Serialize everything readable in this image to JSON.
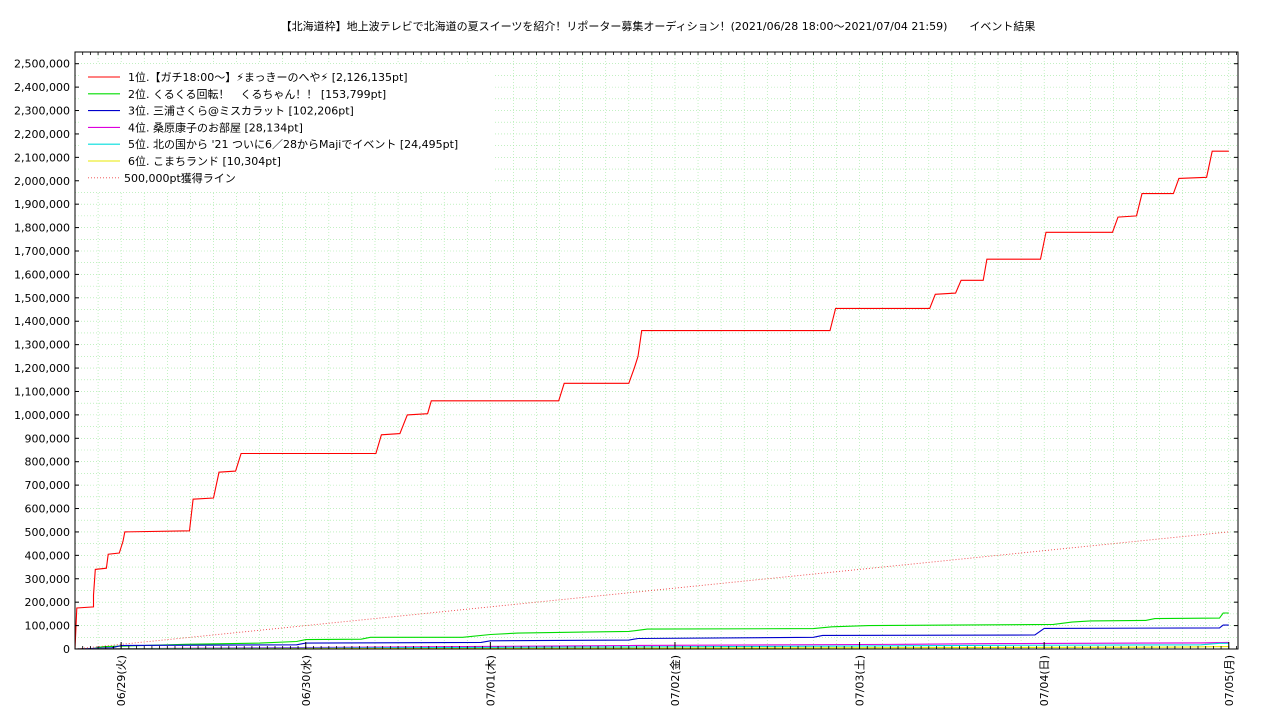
{
  "chart_data": {
    "type": "line",
    "title": "【北海道枠】地上波テレビで北海道の夏スイーツを紹介！リポーター募集オーディション！(2021/06/28 18:00～2021/07/04 21:59)　　イベント結果",
    "xlabel": "",
    "ylabel": "",
    "x_unit": "days since 2021/06/28 18:00",
    "xlim": [
      0,
      6.3
    ],
    "ylim": [
      0,
      2550000
    ],
    "y_ticks": [
      0,
      100000,
      200000,
      300000,
      400000,
      500000,
      600000,
      700000,
      800000,
      900000,
      1000000,
      1100000,
      1200000,
      1300000,
      1400000,
      1500000,
      1600000,
      1700000,
      1800000,
      1900000,
      2000000,
      2100000,
      2200000,
      2300000,
      2400000,
      2500000
    ],
    "y_tick_labels": [
      "0",
      "100,000",
      "200,000",
      "300,000",
      "400,000",
      "500,000",
      "600,000",
      "700,000",
      "800,000",
      "900,000",
      "1,000,000",
      "1,100,000",
      "1,200,000",
      "1,300,000",
      "1,400,000",
      "1,500,000",
      "1,600,000",
      "1,700,000",
      "1,800,000",
      "1,900,000",
      "2,000,000",
      "2,100,000",
      "2,200,000",
      "2,300,000",
      "2,400,000",
      "2,500,000"
    ],
    "x_ticks": [
      0.25,
      1.25,
      2.25,
      3.25,
      4.25,
      5.25,
      6.25
    ],
    "x_tick_labels": [
      "06/29(火)",
      "06/30(水)",
      "07/01(木)",
      "07/02(金)",
      "07/03(土)",
      "07/04(日)",
      "07/05(月)"
    ],
    "grid": true,
    "legend_position": "top-left",
    "series": [
      {
        "name": "1位.【ガチ18:00〜】⚡まっきーのへや⚡ [2,126,135pt]",
        "color": "#ff0000",
        "style": "solid",
        "points": [
          [
            0,
            0
          ],
          [
            0.01,
            175000
          ],
          [
            0.1,
            180000
          ],
          [
            0.1,
            230000
          ],
          [
            0.11,
            340000
          ],
          [
            0.17,
            345000
          ],
          [
            0.18,
            405000
          ],
          [
            0.24,
            410000
          ],
          [
            0.26,
            460000
          ],
          [
            0.27,
            500000
          ],
          [
            0.62,
            505000
          ],
          [
            0.64,
            640000
          ],
          [
            0.75,
            645000
          ],
          [
            0.78,
            755000
          ],
          [
            0.87,
            760000
          ],
          [
            0.9,
            835000
          ],
          [
            1.63,
            835000
          ],
          [
            1.66,
            915000
          ],
          [
            1.76,
            920000
          ],
          [
            1.8,
            1000000
          ],
          [
            1.91,
            1005000
          ],
          [
            1.93,
            1060000
          ],
          [
            2.62,
            1060000
          ],
          [
            2.65,
            1135000
          ],
          [
            3.0,
            1135000
          ],
          [
            3.03,
            1200000
          ],
          [
            3.05,
            1250000
          ],
          [
            3.07,
            1360000
          ],
          [
            4.09,
            1360000
          ],
          [
            4.12,
            1455000
          ],
          [
            4.63,
            1455000
          ],
          [
            4.66,
            1515000
          ],
          [
            4.77,
            1520000
          ],
          [
            4.8,
            1575000
          ],
          [
            4.92,
            1575000
          ],
          [
            4.94,
            1665000
          ],
          [
            5.23,
            1665000
          ],
          [
            5.26,
            1780000
          ],
          [
            5.62,
            1780000
          ],
          [
            5.65,
            1845000
          ],
          [
            5.75,
            1850000
          ],
          [
            5.78,
            1945000
          ],
          [
            5.95,
            1945000
          ],
          [
            5.98,
            2010000
          ],
          [
            6.13,
            2015000
          ],
          [
            6.16,
            2126135
          ],
          [
            6.25,
            2126135
          ]
        ]
      },
      {
        "name": "2位. くるくる回転！　くるちゃん！！ [153,799pt]",
        "color": "#00dd00",
        "style": "solid",
        "points": [
          [
            0,
            0
          ],
          [
            0.1,
            2000
          ],
          [
            0.15,
            10000
          ],
          [
            0.6,
            20000
          ],
          [
            1.0,
            25000
          ],
          [
            1.2,
            32000
          ],
          [
            1.25,
            40000
          ],
          [
            1.55,
            42000
          ],
          [
            1.6,
            50000
          ],
          [
            2.1,
            50000
          ],
          [
            2.25,
            62000
          ],
          [
            2.4,
            68000
          ],
          [
            2.75,
            72000
          ],
          [
            3.0,
            75000
          ],
          [
            3.05,
            80000
          ],
          [
            3.1,
            85000
          ],
          [
            4.0,
            87000
          ],
          [
            4.1,
            95000
          ],
          [
            4.3,
            100000
          ],
          [
            4.75,
            102000
          ],
          [
            5.3,
            105000
          ],
          [
            5.4,
            115000
          ],
          [
            5.5,
            120000
          ],
          [
            5.8,
            122000
          ],
          [
            5.85,
            130000
          ],
          [
            6.2,
            132000
          ],
          [
            6.22,
            153799
          ],
          [
            6.25,
            153799
          ]
        ]
      },
      {
        "name": "3位. 三浦さくら@ミスカラット [102,206pt]",
        "color": "#0000cc",
        "style": "solid",
        "points": [
          [
            0,
            0
          ],
          [
            0.2,
            5000
          ],
          [
            0.25,
            15000
          ],
          [
            1.2,
            18000
          ],
          [
            1.25,
            25000
          ],
          [
            2.2,
            28000
          ],
          [
            2.25,
            35000
          ],
          [
            3.0,
            38000
          ],
          [
            3.05,
            45000
          ],
          [
            4.0,
            50000
          ],
          [
            4.05,
            58000
          ],
          [
            5.2,
            60000
          ],
          [
            5.25,
            88000
          ],
          [
            6.2,
            90000
          ],
          [
            6.22,
            102206
          ],
          [
            6.25,
            102206
          ]
        ]
      },
      {
        "name": "4位. 桑原康子のお部屋 [28,134pt]",
        "color": "#dd00dd",
        "style": "solid",
        "points": [
          [
            0,
            0
          ],
          [
            1.0,
            5000
          ],
          [
            2.0,
            10000
          ],
          [
            3.0,
            15000
          ],
          [
            4.5,
            20000
          ],
          [
            5.0,
            23000
          ],
          [
            6.1,
            26000
          ],
          [
            6.25,
            28134
          ]
        ]
      },
      {
        "name": "5位. 北の国から '21 ついに6／28からMajiでイベント [24,495pt]",
        "color": "#00dddd",
        "style": "solid",
        "points": [
          [
            0,
            0
          ],
          [
            1.0,
            3000
          ],
          [
            2.0,
            6000
          ],
          [
            3.0,
            9000
          ],
          [
            4.0,
            12000
          ],
          [
            5.0,
            16000
          ],
          [
            6.1,
            18000
          ],
          [
            6.2,
            24495
          ],
          [
            6.25,
            24495
          ]
        ]
      },
      {
        "name": "6位. こまちランド [10,304pt]",
        "color": "#e8e800",
        "style": "solid",
        "points": [
          [
            0,
            0
          ],
          [
            2.0,
            2000
          ],
          [
            4.0,
            5000
          ],
          [
            6.0,
            8000
          ],
          [
            6.25,
            10304
          ]
        ]
      },
      {
        "name": "500,000pt獲得ライン",
        "color": "#ee4444",
        "style": "dotted",
        "points": [
          [
            0,
            0
          ],
          [
            6.25,
            500000
          ]
        ]
      }
    ]
  }
}
